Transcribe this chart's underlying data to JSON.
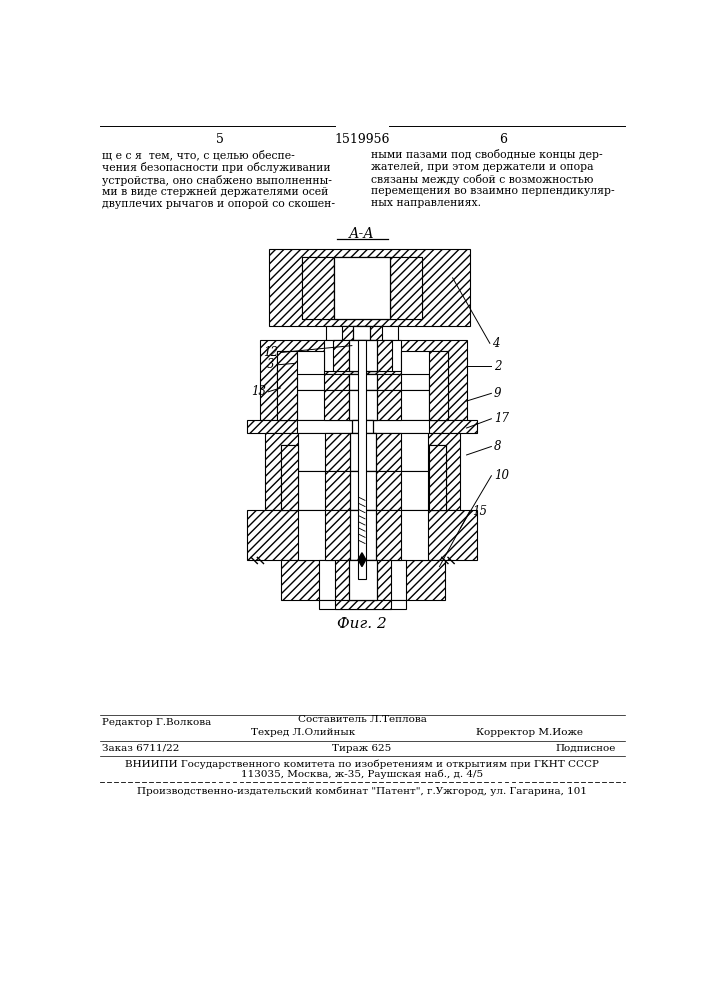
{
  "page_number_left": "5",
  "page_number_center": "1519956",
  "page_number_right": "6",
  "text_left": "щ е с я  тем, что, с целью обеспе-\nчения безопасности при обслуживании\nустройства, оно снабжено выполненны-\nми в виде стержней держателями осей\nдвуплечих рычагов и опорой со скошен-",
  "text_right": "ными пазами под свободные концы дер-\nжателей, при этом держатели и опора\nсвязаны между собой с возможностью\nперемещения во взаимно перпендикуляр-\nных направлениях.",
  "section_label": "А-А",
  "fig_label": "Фиг. 2",
  "editor_label": "Редактор Г.Волкова",
  "composer_label": "Составитель Л.Теплова",
  "techred_label": "Техред Л.Олийнык",
  "corrector_label": "Корректор М.Иоже",
  "order_label": "Заказ 6711/22",
  "print_run_label": "Тираж 625",
  "subscription_label": "Подписное",
  "vniiipi_line1": "ВНИИПИ Государственного комитета по изобретениям и открытиям при ГКНТ СССР",
  "vniiipi_line2": "113035, Москва, ж-35, Раушская наб., д. 4/5",
  "publisher_line": "Производственно-издательский комбинат \"Патент\", г.Ужгород, ул. Гагарина, 101",
  "bg_color": "#ffffff",
  "text_color": "#000000"
}
